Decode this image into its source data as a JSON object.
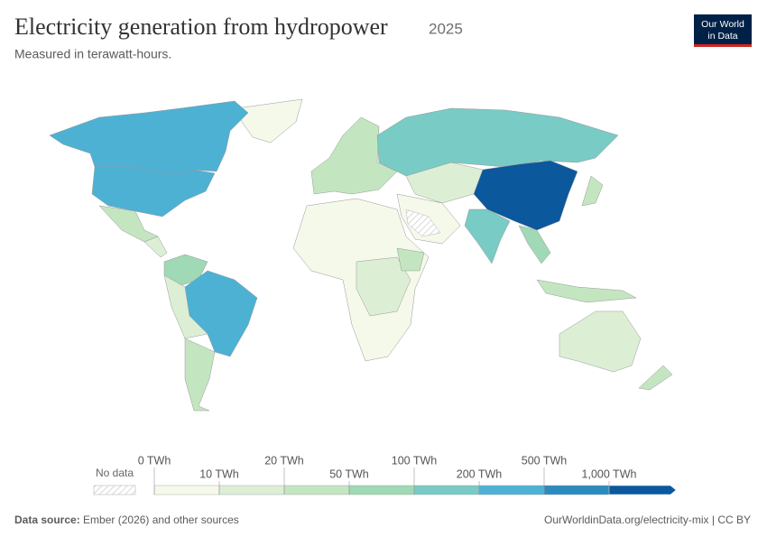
{
  "header": {
    "title": "Electricity generation from hydropower",
    "year": "2025",
    "subtitle": "Measured in terawatt-hours.",
    "logo": [
      "Our World",
      "in Data"
    ]
  },
  "legend": {
    "no_data": "No data",
    "ticks": [
      {
        "value": 0,
        "label": "0 TWh"
      },
      {
        "value": 10,
        "label": "10 TWh"
      },
      {
        "value": 20,
        "label": "20 TWh"
      },
      {
        "value": 50,
        "label": "50 TWh"
      },
      {
        "value": 100,
        "label": "100 TWh"
      },
      {
        "value": 200,
        "label": "200 TWh"
      },
      {
        "value": 500,
        "label": "500 TWh"
      },
      {
        "value": 1000,
        "label": "1,000 TWh"
      }
    ],
    "colors": [
      "#f4f9ea",
      "#dcefd5",
      "#c3e6c0",
      "#a0d9b5",
      "#79cbc5",
      "#4db1d4",
      "#2b8bbe",
      "#0b589d"
    ]
  },
  "footer": {
    "source_label": "Data source:",
    "source": "Ember (2026) and other sources",
    "link": "OurWorldinData.org/electricity-mix | CC BY"
  }
}
